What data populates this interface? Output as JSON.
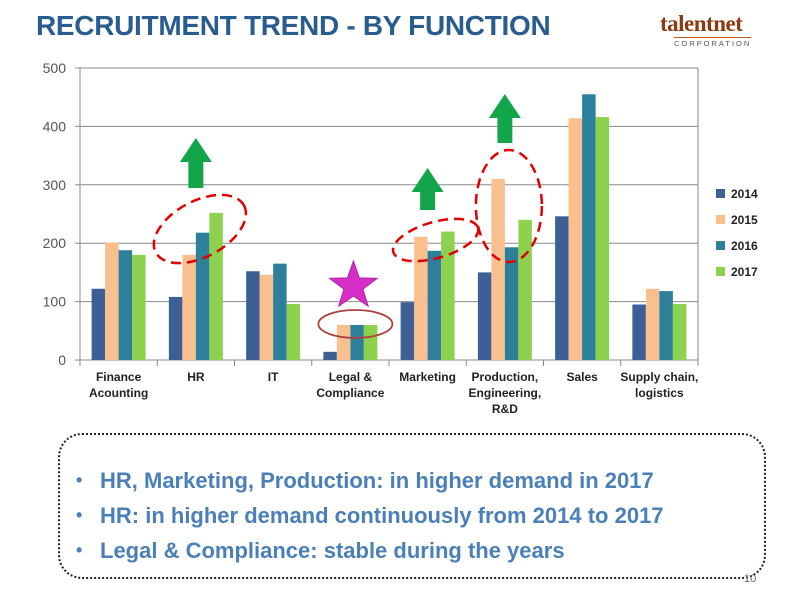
{
  "title": "RECRUITMENT TREND - BY FUNCTION",
  "logo": {
    "word": "talentnet",
    "sub": "CORPORATION"
  },
  "chart_data": {
    "type": "bar",
    "categories": [
      [
        "Finance",
        "Acounting"
      ],
      [
        "HR"
      ],
      [
        "IT"
      ],
      [
        "Legal &",
        "Compliance"
      ],
      [
        "Marketing"
      ],
      [
        "Production,",
        "Engineering,",
        "R&D"
      ],
      [
        "Sales"
      ],
      [
        "Supply chain,",
        "logistics"
      ]
    ],
    "series": [
      {
        "name": "2014",
        "color": "#3c5f96",
        "values": [
          122,
          108,
          152,
          14,
          99,
          150,
          246,
          95
        ]
      },
      {
        "name": "2015",
        "color": "#f9bf8e",
        "values": [
          201,
          180,
          146,
          60,
          211,
          310,
          414,
          122
        ]
      },
      {
        "name": "2016",
        "color": "#2e7f99",
        "values": [
          188,
          218,
          165,
          60,
          187,
          193,
          455,
          118
        ]
      },
      {
        "name": "2017",
        "color": "#8ed14f",
        "values": [
          180,
          252,
          96,
          60,
          220,
          240,
          416,
          96
        ]
      }
    ],
    "ylim": [
      0,
      500
    ],
    "yticks": [
      0,
      100,
      200,
      300,
      400,
      500
    ],
    "grid": true,
    "legend": "right"
  },
  "bullets": [
    "HR, Marketing, Production: in higher demand in 2017",
    "HR: in higher demand continuously from 2014 to 2017",
    "Legal & Compliance: stable during the years"
  ],
  "page_number": "10",
  "colors": {
    "title": "#2a5d8f",
    "bullets": "#4a7fb8",
    "arrow": "#12a54a",
    "highlight": "#e00000",
    "star": "#d62fc8",
    "ellipse": "#b04040"
  },
  "annotations": {
    "up_arrows": [
      "HR",
      "Marketing",
      "Production, Engineering, R&D"
    ],
    "highlight_ellipses": [
      "HR",
      "Marketing",
      "Production, Engineering, R&D"
    ],
    "stable_marker": "Legal & Compliance"
  }
}
